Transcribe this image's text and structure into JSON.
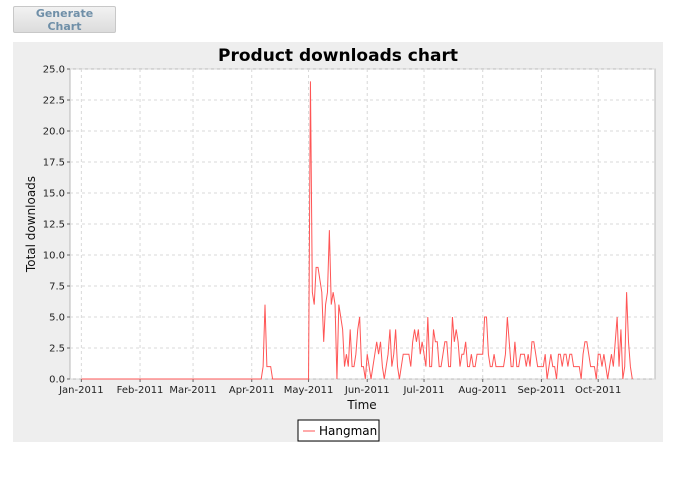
{
  "toolbar": {
    "generate_label": "Generate Chart"
  },
  "chart_data": {
    "type": "line",
    "title": "Product downloads chart",
    "xlabel": "Time",
    "ylabel": "Total downloads",
    "ylim": [
      0,
      25
    ],
    "yticks": [
      "0.0",
      "2.5",
      "5.0",
      "7.5",
      "10.0",
      "12.5",
      "15.0",
      "17.5",
      "20.0",
      "22.5",
      "25.0"
    ],
    "xticks": [
      {
        "label": "Jan-2011",
        "date": "2011-01-01"
      },
      {
        "label": "Feb-2011",
        "date": "2011-02-01"
      },
      {
        "label": "Mar-2011",
        "date": "2011-03-01"
      },
      {
        "label": "Apr-2011",
        "date": "2011-04-01"
      },
      {
        "label": "May-2011",
        "date": "2011-05-01"
      },
      {
        "label": "Jun-2011",
        "date": "2011-06-01"
      },
      {
        "label": "Jul-2011",
        "date": "2011-07-01"
      },
      {
        "label": "Aug-2011",
        "date": "2011-08-01"
      },
      {
        "label": "Sep-2011",
        "date": "2011-09-01"
      },
      {
        "label": "Oct-2011",
        "date": "2011-10-01"
      }
    ],
    "xlim": [
      "2010-12-26",
      "2011-10-31"
    ],
    "grid": true,
    "legend_placement": "bottom",
    "series": [
      {
        "name": "Hangman",
        "color": "#ff5555",
        "points": [
          [
            "2011-01-01",
            0
          ],
          [
            "2011-04-06",
            0
          ],
          [
            "2011-04-07",
            1
          ],
          [
            "2011-04-08",
            6
          ],
          [
            "2011-04-09",
            1
          ],
          [
            "2011-04-10",
            1
          ],
          [
            "2011-04-11",
            1
          ],
          [
            "2011-04-12",
            0
          ],
          [
            "2011-04-30",
            0
          ],
          [
            "2011-05-01",
            0
          ],
          [
            "2011-05-02",
            24
          ],
          [
            "2011-05-03",
            7
          ],
          [
            "2011-05-04",
            6
          ],
          [
            "2011-05-05",
            9
          ],
          [
            "2011-05-06",
            9
          ],
          [
            "2011-05-07",
            8
          ],
          [
            "2011-05-08",
            7
          ],
          [
            "2011-05-09",
            3
          ],
          [
            "2011-05-10",
            6
          ],
          [
            "2011-05-11",
            7
          ],
          [
            "2011-05-12",
            12
          ],
          [
            "2011-05-13",
            6
          ],
          [
            "2011-05-14",
            7
          ],
          [
            "2011-05-15",
            6
          ],
          [
            "2011-05-16",
            0
          ],
          [
            "2011-05-17",
            6
          ],
          [
            "2011-05-18",
            5
          ],
          [
            "2011-05-19",
            4
          ],
          [
            "2011-05-20",
            1
          ],
          [
            "2011-05-21",
            2
          ],
          [
            "2011-05-22",
            1
          ],
          [
            "2011-05-23",
            4
          ],
          [
            "2011-05-24",
            1
          ],
          [
            "2011-05-25",
            1
          ],
          [
            "2011-05-26",
            2
          ],
          [
            "2011-05-27",
            4
          ],
          [
            "2011-05-28",
            5
          ],
          [
            "2011-05-29",
            1
          ],
          [
            "2011-05-30",
            1
          ],
          [
            "2011-05-31",
            0
          ],
          [
            "2011-06-01",
            2
          ],
          [
            "2011-06-02",
            1
          ],
          [
            "2011-06-03",
            0
          ],
          [
            "2011-06-04",
            1
          ],
          [
            "2011-06-05",
            2
          ],
          [
            "2011-06-06",
            3
          ],
          [
            "2011-06-07",
            2
          ],
          [
            "2011-06-08",
            3
          ],
          [
            "2011-06-09",
            1
          ],
          [
            "2011-06-10",
            0
          ],
          [
            "2011-06-11",
            1
          ],
          [
            "2011-06-12",
            2
          ],
          [
            "2011-06-13",
            4
          ],
          [
            "2011-06-14",
            1
          ],
          [
            "2011-06-15",
            2
          ],
          [
            "2011-06-16",
            4
          ],
          [
            "2011-06-17",
            1
          ],
          [
            "2011-06-18",
            0
          ],
          [
            "2011-06-19",
            1
          ],
          [
            "2011-06-20",
            2
          ],
          [
            "2011-06-21",
            2
          ],
          [
            "2011-06-22",
            2
          ],
          [
            "2011-06-23",
            2
          ],
          [
            "2011-06-24",
            1
          ],
          [
            "2011-06-25",
            3
          ],
          [
            "2011-06-26",
            4
          ],
          [
            "2011-06-27",
            3
          ],
          [
            "2011-06-28",
            4
          ],
          [
            "2011-06-29",
            2
          ],
          [
            "2011-06-30",
            3
          ],
          [
            "2011-07-01",
            2
          ],
          [
            "2011-07-02",
            1
          ],
          [
            "2011-07-03",
            5
          ],
          [
            "2011-07-04",
            1
          ],
          [
            "2011-07-05",
            1
          ],
          [
            "2011-07-06",
            4
          ],
          [
            "2011-07-07",
            3
          ],
          [
            "2011-07-08",
            3
          ],
          [
            "2011-07-09",
            1
          ],
          [
            "2011-07-10",
            1
          ],
          [
            "2011-07-11",
            2
          ],
          [
            "2011-07-12",
            3
          ],
          [
            "2011-07-13",
            3
          ],
          [
            "2011-07-14",
            1
          ],
          [
            "2011-07-15",
            1
          ],
          [
            "2011-07-16",
            5
          ],
          [
            "2011-07-17",
            3
          ],
          [
            "2011-07-18",
            4
          ],
          [
            "2011-07-19",
            3
          ],
          [
            "2011-07-20",
            1
          ],
          [
            "2011-07-21",
            2
          ],
          [
            "2011-07-22",
            2
          ],
          [
            "2011-07-23",
            3
          ],
          [
            "2011-07-24",
            1
          ],
          [
            "2011-07-25",
            1
          ],
          [
            "2011-07-26",
            2
          ],
          [
            "2011-07-27",
            1
          ],
          [
            "2011-07-28",
            1
          ],
          [
            "2011-07-29",
            2
          ],
          [
            "2011-07-30",
            2
          ],
          [
            "2011-07-31",
            2
          ],
          [
            "2011-08-01",
            2
          ],
          [
            "2011-08-02",
            5
          ],
          [
            "2011-08-03",
            5
          ],
          [
            "2011-08-04",
            2
          ],
          [
            "2011-08-05",
            1
          ],
          [
            "2011-08-06",
            1
          ],
          [
            "2011-08-07",
            2
          ],
          [
            "2011-08-08",
            1
          ],
          [
            "2011-08-09",
            1
          ],
          [
            "2011-08-10",
            1
          ],
          [
            "2011-08-11",
            1
          ],
          [
            "2011-08-12",
            1
          ],
          [
            "2011-08-13",
            2
          ],
          [
            "2011-08-14",
            5
          ],
          [
            "2011-08-15",
            3
          ],
          [
            "2011-08-16",
            1
          ],
          [
            "2011-08-17",
            1
          ],
          [
            "2011-08-18",
            3
          ],
          [
            "2011-08-19",
            1
          ],
          [
            "2011-08-20",
            1
          ],
          [
            "2011-08-21",
            2
          ],
          [
            "2011-08-22",
            2
          ],
          [
            "2011-08-23",
            2
          ],
          [
            "2011-08-24",
            1
          ],
          [
            "2011-08-25",
            2
          ],
          [
            "2011-08-26",
            1
          ],
          [
            "2011-08-27",
            3
          ],
          [
            "2011-08-28",
            3
          ],
          [
            "2011-08-29",
            2
          ],
          [
            "2011-08-30",
            1
          ],
          [
            "2011-08-31",
            1
          ],
          [
            "2011-09-01",
            1
          ],
          [
            "2011-09-02",
            1
          ],
          [
            "2011-09-03",
            2
          ],
          [
            "2011-09-04",
            0
          ],
          [
            "2011-09-05",
            1
          ],
          [
            "2011-09-06",
            2
          ],
          [
            "2011-09-07",
            1
          ],
          [
            "2011-09-08",
            1
          ],
          [
            "2011-09-09",
            0
          ],
          [
            "2011-09-10",
            2
          ],
          [
            "2011-09-11",
            2
          ],
          [
            "2011-09-12",
            1
          ],
          [
            "2011-09-13",
            2
          ],
          [
            "2011-09-14",
            2
          ],
          [
            "2011-09-15",
            1
          ],
          [
            "2011-09-16",
            2
          ],
          [
            "2011-09-17",
            2
          ],
          [
            "2011-09-18",
            1
          ],
          [
            "2011-09-19",
            1
          ],
          [
            "2011-09-20",
            1
          ],
          [
            "2011-09-21",
            1
          ],
          [
            "2011-09-22",
            0
          ],
          [
            "2011-09-23",
            2
          ],
          [
            "2011-09-24",
            3
          ],
          [
            "2011-09-25",
            3
          ],
          [
            "2011-09-26",
            2
          ],
          [
            "2011-09-27",
            1
          ],
          [
            "2011-09-28",
            1
          ],
          [
            "2011-09-29",
            1
          ],
          [
            "2011-09-30",
            0
          ],
          [
            "2011-10-01",
            2
          ],
          [
            "2011-10-02",
            2
          ],
          [
            "2011-10-03",
            1
          ],
          [
            "2011-10-04",
            2
          ],
          [
            "2011-10-05",
            1
          ],
          [
            "2011-10-06",
            0
          ],
          [
            "2011-10-07",
            1
          ],
          [
            "2011-10-08",
            2
          ],
          [
            "2011-10-09",
            1
          ],
          [
            "2011-10-10",
            3
          ],
          [
            "2011-10-11",
            5
          ],
          [
            "2011-10-12",
            1
          ],
          [
            "2011-10-13",
            4
          ],
          [
            "2011-10-14",
            0
          ],
          [
            "2011-10-15",
            1
          ],
          [
            "2011-10-16",
            7
          ],
          [
            "2011-10-17",
            3
          ],
          [
            "2011-10-18",
            1
          ],
          [
            "2011-10-19",
            0
          ]
        ]
      }
    ]
  }
}
